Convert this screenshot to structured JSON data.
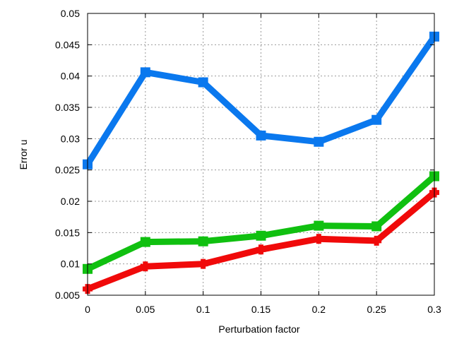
{
  "chart_data": {
    "type": "line",
    "title": "",
    "xlabel": "Perturbation factor",
    "ylabel": "Error u",
    "xlim": [
      0,
      0.3
    ],
    "ylim": [
      0.005,
      0.05
    ],
    "grid": true,
    "x": [
      0,
      0.05,
      0.1,
      0.15,
      0.2,
      0.25,
      0.3
    ],
    "x_ticks": [
      "0",
      "0.05",
      "0.1",
      "0.15",
      "0.2",
      "0.25",
      "0.3"
    ],
    "y_ticks": [
      "0.005",
      "0.01",
      "0.015",
      "0.02",
      "0.025",
      "0.03",
      "0.035",
      "0.04",
      "0.045",
      "0.05"
    ],
    "series": [
      {
        "color": "#0a78ee",
        "marker": "square",
        "values": [
          0.0259,
          0.0406,
          0.039,
          0.0305,
          0.0295,
          0.033,
          0.0463
        ]
      },
      {
        "color": "#10c010",
        "marker": "square",
        "values": [
          0.0092,
          0.0135,
          0.0136,
          0.0145,
          0.0161,
          0.016,
          0.024
        ]
      },
      {
        "color": "#f00a0a",
        "marker": "plus",
        "values": [
          0.006,
          0.0096,
          0.01,
          0.0123,
          0.014,
          0.0137,
          0.0214
        ]
      }
    ]
  }
}
